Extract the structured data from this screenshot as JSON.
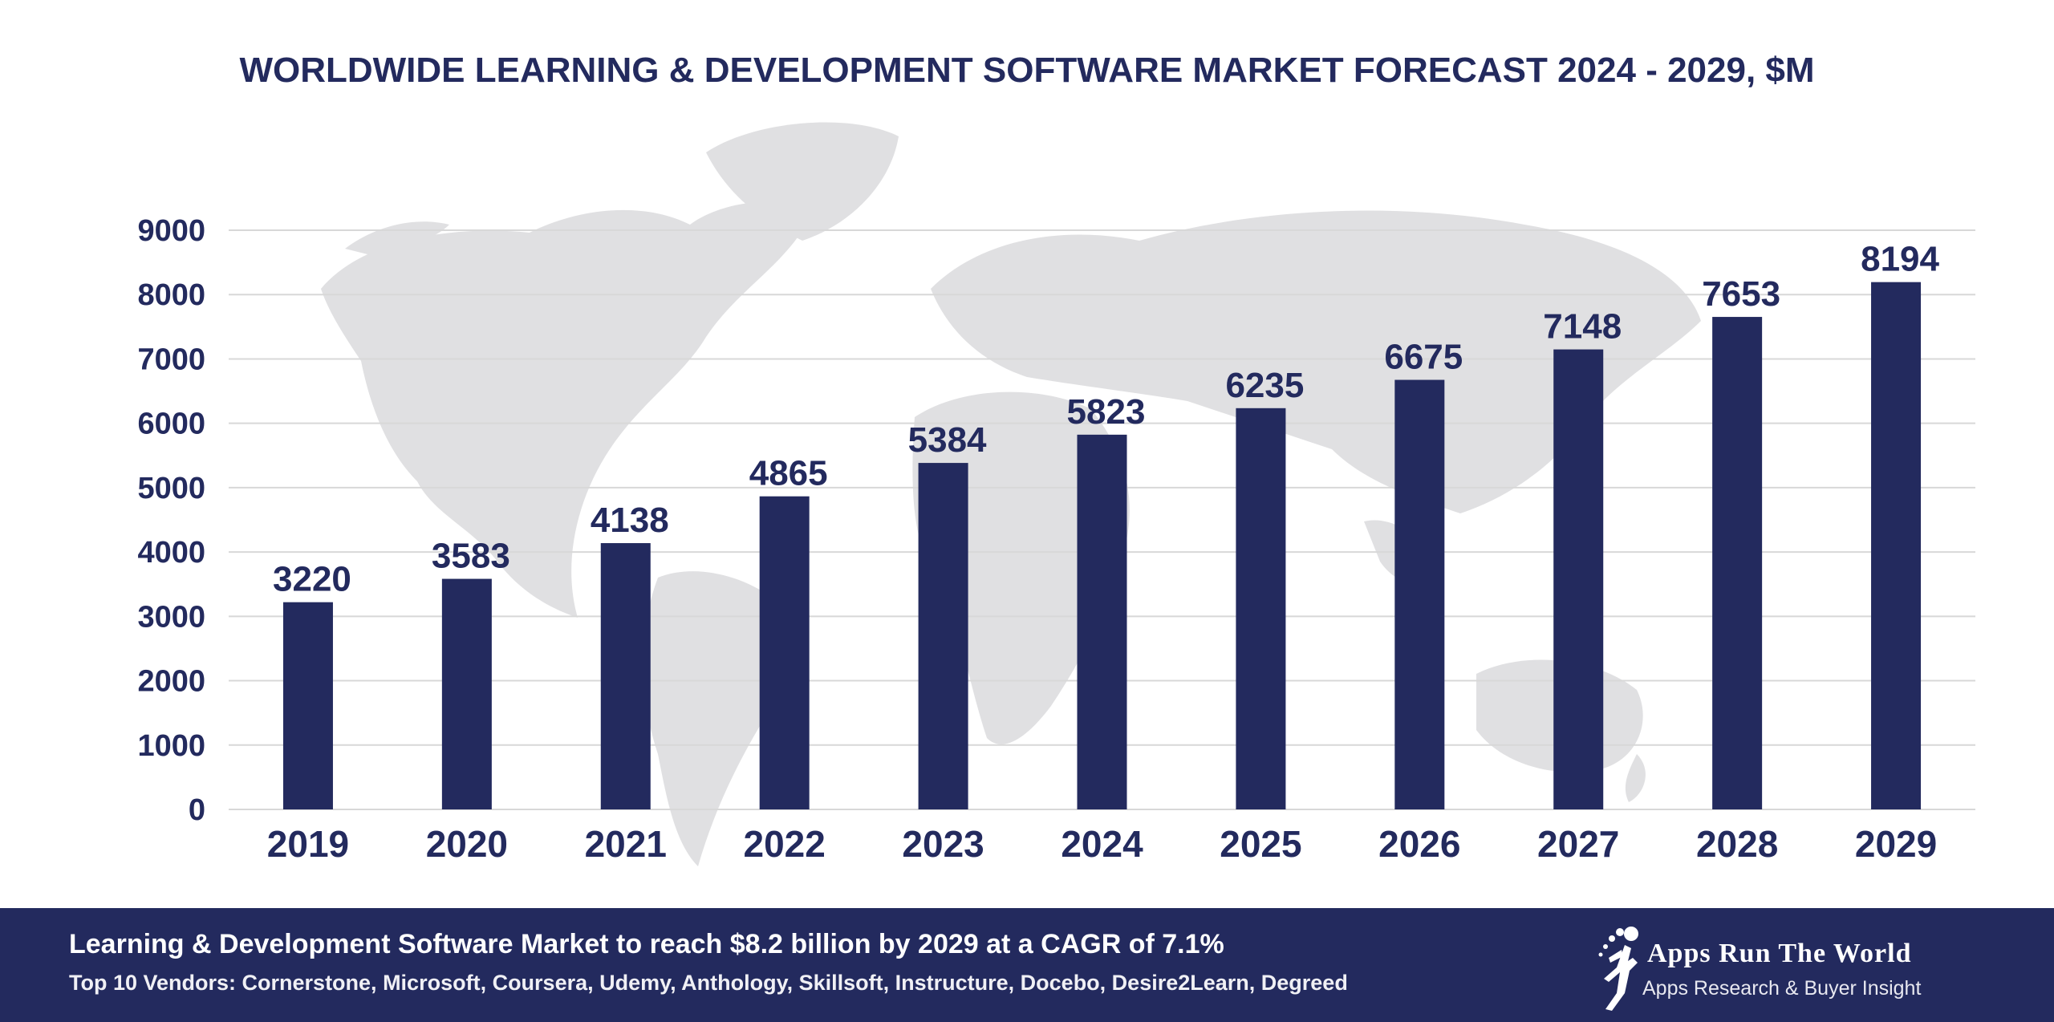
{
  "chart_data": {
    "type": "bar",
    "title": "WORLDWIDE LEARNING & DEVELOPMENT SOFTWARE MARKET FORECAST 2024 - 2029, $M",
    "categories": [
      "2019",
      "2020",
      "2021",
      "2022",
      "2023",
      "2024",
      "2025",
      "2026",
      "2027",
      "2028",
      "2029"
    ],
    "values": [
      3220,
      3583,
      4138,
      4865,
      5384,
      5823,
      6235,
      6675,
      7148,
      7653,
      8194
    ],
    "y_ticks": [
      "0",
      "1000",
      "2000",
      "3000",
      "4000",
      "5000",
      "6000",
      "7000",
      "8000",
      "9000"
    ],
    "ylim": [
      0,
      9000
    ],
    "grid": true,
    "bar_color": "#232a5e",
    "background": "world map silhouette"
  },
  "footer": {
    "headline": "Learning & Development Software Market to reach $8.2 billion by 2029 at a CAGR of 7.1%",
    "vendors": "Top 10 Vendors: Cornerstone, Microsoft, Coursera, Udemy, Anthology, Skillsoft, Instructure, Docebo, Desire2Learn, Degreed",
    "background_color": "#232a5e"
  },
  "logo": {
    "name": "Apps Run The World",
    "tagline": "Apps Research & Buyer Insight",
    "icon": "runner-icon"
  }
}
